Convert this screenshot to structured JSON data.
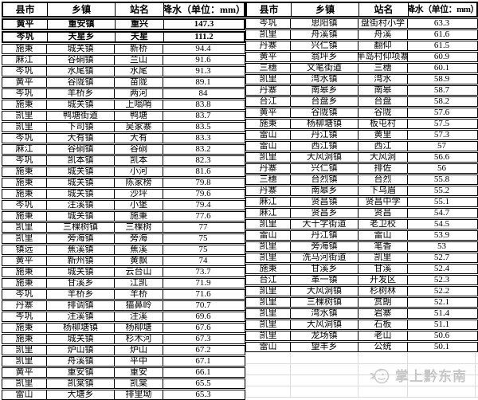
{
  "colors": {
    "table_border": "#000000",
    "empty_grid_line": "#dcdcdc",
    "watermark_gray": "#c3c3c3",
    "background": "#ffffff"
  },
  "watermark": {
    "icon": "mascot-bird-icon",
    "text": "掌上黔东南"
  },
  "column_keys": [
    "county",
    "town",
    "station",
    "rainfall"
  ],
  "tables": [
    {
      "id": "left",
      "headers": [
        "县市",
        "乡镇",
        "站名",
        "降水（单位：mm）"
      ],
      "bold_rows": [
        0,
        1
      ],
      "empty_rows": 0,
      "rows": [
        [
          "黄平",
          "重安镇",
          "重兴",
          "147.3"
        ],
        [
          "岑巩",
          "天星乡",
          "天星",
          "111.2"
        ],
        [
          "施秉",
          "城关镇",
          "新桥",
          "94.4"
        ],
        [
          "麻江",
          "谷硐镇",
          "兰山",
          "91.6"
        ],
        [
          "岑巩",
          "水尾镇",
          "水尾",
          "91.3"
        ],
        [
          "黄平",
          "谷陇镇",
          "苗陇",
          "89.1"
        ],
        [
          "岑巩",
          "羊桥乡",
          "两河",
          "84"
        ],
        [
          "施秉",
          "城关镇",
          "上嗡哨",
          "83.8"
        ],
        [
          "凯里",
          "鸭塘街道",
          "鸭塘",
          "83.7"
        ],
        [
          "凯里",
          "下司镇",
          "吴家寨",
          "83.5"
        ],
        [
          "岑巩",
          "大有镇",
          "大有",
          "83.3"
        ],
        [
          "麻江",
          "谷硐镇",
          "谷硐",
          "83.2"
        ],
        [
          "岑巩",
          "凯本镇",
          "凯本",
          "82.3"
        ],
        [
          "施秉",
          "城关镇",
          "小河",
          "81.6"
        ],
        [
          "施秉",
          "城关镇",
          "陈家榜",
          "79.8"
        ],
        [
          "施秉",
          "城关镇",
          "沙坪",
          "79.6"
        ],
        [
          "岑巩",
          "注溪镇",
          "小堡",
          "79.4"
        ],
        [
          "施秉",
          "城关镇",
          "施秉",
          "77.6"
        ],
        [
          "凯里",
          "三棵树镇",
          "三棵树",
          "77"
        ],
        [
          "凯里",
          "旁海镇",
          "旁海",
          "75"
        ],
        [
          "镇远",
          "蕉溪镇",
          "蕉溪",
          "75"
        ],
        [
          "黄平",
          "新州镇",
          "黄飘",
          "74"
        ],
        [
          "施秉",
          "城关镇",
          "云台山",
          "73.7"
        ],
        [
          "施秉",
          "甘溪乡",
          "江凯",
          "71.9"
        ],
        [
          "岑巩",
          "羊桥乡",
          "羊桥",
          "71.6"
        ],
        [
          "丹寨",
          "排调镇",
          "猫鼻岭",
          "70.7"
        ],
        [
          "岑巩",
          "注溪镇",
          "注溪",
          "69.6"
        ],
        [
          "施秉",
          "杨柳塘镇",
          "杨柳塘",
          "67.6"
        ],
        [
          "施秉",
          "城关镇",
          "杉木河",
          "67.3"
        ],
        [
          "凯里",
          "炉山镇",
          "炉山",
          "67.2"
        ],
        [
          "凯里",
          "舟溪镇",
          "平中",
          "67.1"
        ],
        [
          "黄平",
          "重安镇",
          "重安",
          "66.1"
        ],
        [
          "凯里",
          "凯棠镇",
          "凯棠",
          "65.5"
        ],
        [
          "雷山",
          "大塘乡",
          "排里坳",
          "65.3"
        ]
      ]
    },
    {
      "id": "right",
      "headers": [
        "县市",
        "乡镇",
        "站名",
        "降水（单位：mm）"
      ],
      "bold_rows": [],
      "empty_rows": 4,
      "rows": [
        [
          "岑巩",
          "思阳镇",
          "盘街村小学",
          "63.3"
        ],
        [
          "凯里",
          "舟溪镇",
          "舟溪",
          "61.6"
        ],
        [
          "丹寨",
          "兴仁镇",
          "翻仰",
          "61.5"
        ],
        [
          "黄平",
          "翁坪乡",
          "半岛村仰项寨",
          "60.9"
        ],
        [
          "三穗",
          "文笔街道",
          "三穗",
          "60.1"
        ],
        [
          "凯里",
          "湾水镇",
          "湾水",
          "58.9"
        ],
        [
          "丹寨",
          "南皋乡",
          "南皋",
          "58.7"
        ],
        [
          "台江",
          "台盘乡",
          "台盘",
          "58.2"
        ],
        [
          "黄平",
          "谷陇镇",
          "谷陇",
          "57.6"
        ],
        [
          "施秉",
          "杨柳塘镇",
          "板屯村",
          "57.5"
        ],
        [
          "雷山",
          "丹江镇",
          "黄里",
          "57.3"
        ],
        [
          "雷山",
          "西江镇",
          "西江",
          "57"
        ],
        [
          "凯里",
          "大风洞镇",
          "大风洞",
          "56.6"
        ],
        [
          "丹寨",
          "兴仁镇",
          "排佐",
          "56"
        ],
        [
          "三穗",
          "台烈镇",
          "台烈",
          "55.8"
        ],
        [
          "丹寨",
          "南皋乡",
          "下乌眉",
          "55.2"
        ],
        [
          "麻江",
          "贤昌镇",
          "贤昌中学",
          "55.1"
        ],
        [
          "麻江",
          "贤昌乡",
          "贤昌",
          "54.7"
        ],
        [
          "凯里",
          "大十字街道",
          "老卫校",
          "54.5"
        ],
        [
          "雷山",
          "丹江镇",
          "雷山",
          "53.9"
        ],
        [
          "凯里",
          "旁海镇",
          "笔香",
          "53"
        ],
        [
          "凯里",
          "洗马河街道",
          "凯里",
          "52.7"
        ],
        [
          "施秉",
          "甘溪乡",
          "甘溪",
          "52.4"
        ],
        [
          "台江",
          "革一镇",
          "开发区",
          "52.3"
        ],
        [
          "凯里",
          "大风洞镇",
          "杉树林",
          "52.2"
        ],
        [
          "凯里",
          "三棵树镇",
          "赏朗",
          "52.1"
        ],
        [
          "凯里",
          "湾水镇",
          "岩寨",
          "51.4"
        ],
        [
          "凯里",
          "大风洞镇",
          "石板",
          "51.1"
        ],
        [
          "凯里",
          "龙场镇",
          "老山",
          "50.6"
        ],
        [
          "雷山",
          "望丰乡",
          "公统",
          "50.1"
        ]
      ]
    }
  ]
}
